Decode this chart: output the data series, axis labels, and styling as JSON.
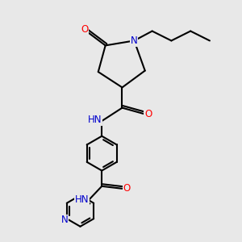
{
  "bg_color": "#e8e8e8",
  "bond_color": "#000000",
  "N_color": "#0000cd",
  "O_color": "#ff0000",
  "line_width": 1.5,
  "font_size": 8.5,
  "fig_size": [
    3.0,
    3.0
  ],
  "dpi": 100,
  "xlim": [
    0,
    10
  ],
  "ylim": [
    0,
    10
  ]
}
